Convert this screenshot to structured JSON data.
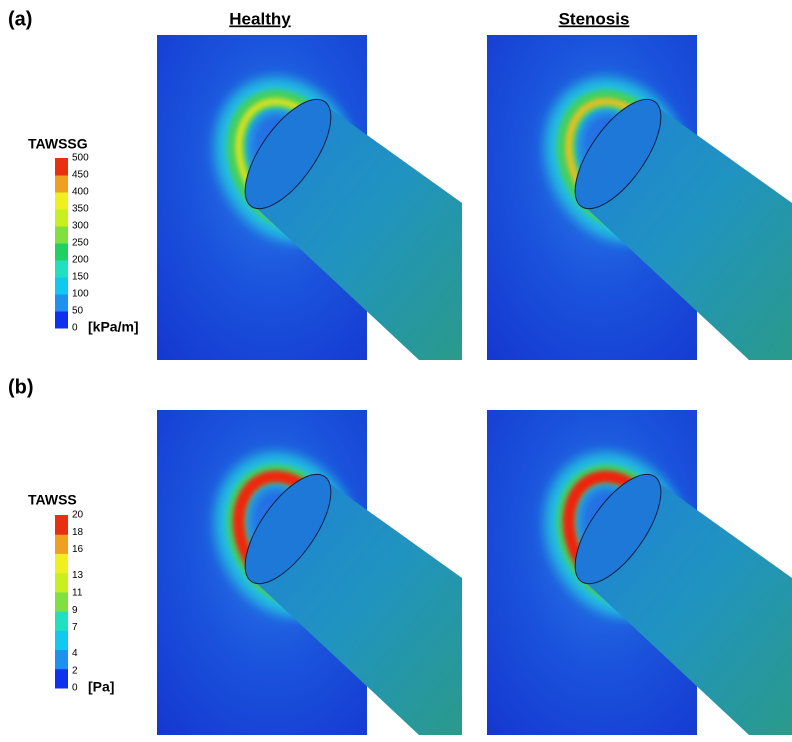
{
  "columns": [
    "Healthy",
    "Stenosis"
  ],
  "panels": [
    {
      "label": "(a)",
      "colorbar": {
        "title": "TAWSSG",
        "unit": "[kPa/m]",
        "ticks": [
          0,
          50,
          100,
          150,
          200,
          250,
          300,
          350,
          400,
          450,
          500
        ]
      }
    },
    {
      "label": "(b)",
      "colorbar": {
        "title": "TAWSS",
        "unit": "[Pa]",
        "ticks": [
          0,
          2,
          4,
          7,
          9,
          11,
          13,
          16,
          18,
          20
        ]
      }
    }
  ]
}
